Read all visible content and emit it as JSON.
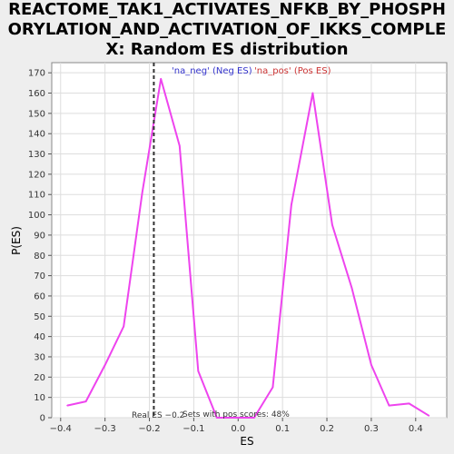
{
  "chart_data": {
    "type": "line",
    "title": "REACTOME_TAK1_ACTIVATES_NFKB_BY_PHOSPHORYLATION_AND_ACTIVATION_OF_IKKS_COMPLEX: Random ES distribution",
    "xlabel": "ES",
    "ylabel": "P(ES)",
    "xlim": [
      -0.42,
      0.47
    ],
    "ylim": [
      0,
      175
    ],
    "xticks": [
      -0.4,
      -0.3,
      -0.2,
      -0.1,
      0.0,
      0.1,
      0.2,
      0.3,
      0.4
    ],
    "xtick_labels": [
      "−0.4",
      "−0.3",
      "−0.2",
      "−0.1",
      "0.0",
      "0.1",
      "0.2",
      "0.3",
      "0.4"
    ],
    "yticks": [
      0,
      10,
      20,
      30,
      40,
      50,
      60,
      70,
      80,
      90,
      100,
      110,
      120,
      130,
      140,
      150,
      160,
      170
    ],
    "grid": true,
    "legend": [
      {
        "label": "'na_neg' (Neg ES)",
        "color": "#3333cc"
      },
      {
        "label": "'na_pos' (Pos ES)",
        "color": "#cc3333"
      }
    ],
    "legend_placement": "top",
    "series": [
      {
        "color": "#ee44ee",
        "x": [
          -0.385,
          -0.343,
          -0.3,
          -0.258,
          -0.216,
          -0.174,
          -0.132,
          -0.09,
          -0.048,
          -0.006,
          0.036,
          0.078,
          0.12,
          0.168,
          0.212,
          0.256,
          0.3,
          0.34,
          0.385,
          0.43
        ],
        "y": [
          6,
          8,
          26,
          45,
          111,
          167,
          134,
          23,
          0,
          0,
          0,
          15,
          105,
          160,
          95,
          64,
          26,
          6,
          7,
          1
        ]
      }
    ],
    "real_es": {
      "x": -0.19,
      "label": "Real ES −0.2",
      "color": "#333333",
      "style": "dashed"
    },
    "annotation": "Sets with pos scores: 48%"
  }
}
